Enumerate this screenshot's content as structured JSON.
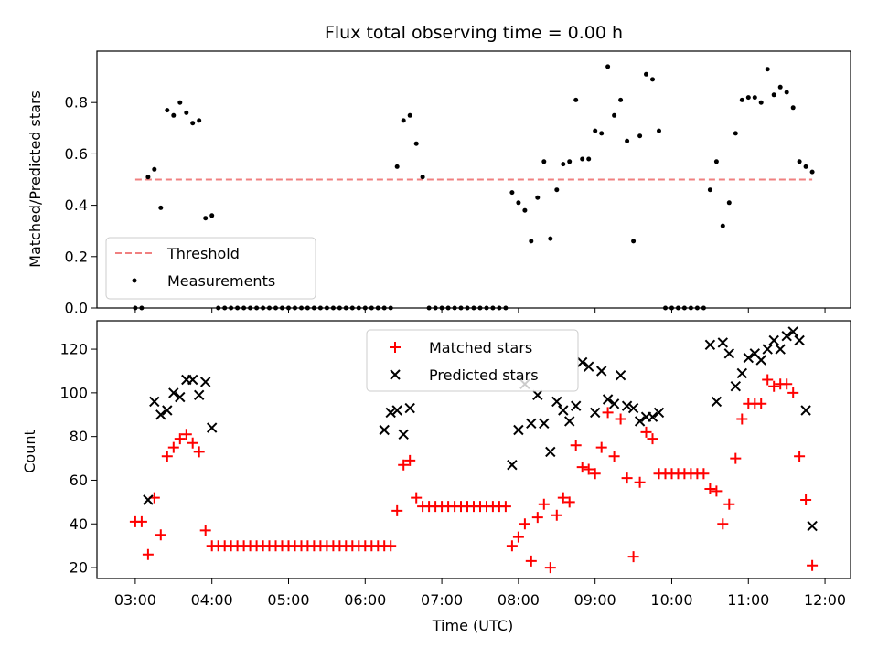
{
  "chart_data": [
    {
      "type": "scatter",
      "title": "Flux total observing time = 0.00 h",
      "ylabel": "Matched/Predicted stars",
      "xlabel": "",
      "xlim": [
        "02:30",
        "12:20"
      ],
      "ylim": [
        0,
        1.0
      ],
      "yticks": [
        0.0,
        0.2,
        0.4,
        0.6,
        0.8
      ],
      "ytick_labels": [
        "0.0",
        "0.2",
        "0.4",
        "0.6",
        "0.8"
      ],
      "x_tick_labels_shown": false,
      "legend": {
        "position": "lower left",
        "entries": [
          "Threshold",
          "Measurements"
        ]
      },
      "grid": false,
      "threshold": {
        "name": "Threshold",
        "value": 0.5,
        "x_range": [
          "03:00",
          "11:50"
        ],
        "color": "#f08080",
        "style": "dashed"
      },
      "series": [
        {
          "name": "Measurements",
          "color": "#000000",
          "x": [
            "03:00",
            "03:05",
            "03:10",
            "03:15",
            "03:20",
            "03:25",
            "03:30",
            "03:35",
            "03:40",
            "03:45",
            "03:50",
            "03:55",
            "04:00",
            "04:05",
            "04:10",
            "04:15",
            "04:20",
            "04:25",
            "04:30",
            "04:35",
            "04:40",
            "04:45",
            "04:50",
            "04:55",
            "05:00",
            "05:05",
            "05:10",
            "05:15",
            "05:20",
            "05:25",
            "05:30",
            "05:35",
            "05:40",
            "05:45",
            "05:50",
            "05:55",
            "06:00",
            "06:05",
            "06:10",
            "06:15",
            "06:20",
            "06:25",
            "06:30",
            "06:35",
            "06:40",
            "06:45",
            "06:50",
            "06:55",
            "07:00",
            "07:05",
            "07:10",
            "07:15",
            "07:20",
            "07:25",
            "07:30",
            "07:35",
            "07:40",
            "07:45",
            "07:50",
            "07:55",
            "08:00",
            "08:05",
            "08:10",
            "08:15",
            "08:20",
            "08:25",
            "08:30",
            "08:35",
            "08:40",
            "08:45",
            "08:50",
            "08:55",
            "09:00",
            "09:05",
            "09:10",
            "09:15",
            "09:20",
            "09:25",
            "09:30",
            "09:35",
            "09:40",
            "09:45",
            "09:50",
            "09:55",
            "10:00",
            "10:05",
            "10:10",
            "10:15",
            "10:20",
            "10:25",
            "10:30",
            "10:35",
            "10:40",
            "10:45",
            "10:50",
            "10:55",
            "11:00",
            "11:05",
            "11:10",
            "11:15",
            "11:20",
            "11:25",
            "11:30",
            "11:35",
            "11:40",
            "11:45",
            "11:50"
          ],
          "y": [
            0.0,
            0.0,
            0.51,
            0.54,
            0.39,
            0.77,
            0.75,
            0.8,
            0.76,
            0.72,
            0.73,
            0.35,
            0.36,
            0.0,
            0.0,
            0.0,
            0.0,
            0.0,
            0.0,
            0.0,
            0.0,
            0.0,
            0.0,
            0.0,
            0.0,
            0.0,
            0.0,
            0.0,
            0.0,
            0.0,
            0.0,
            0.0,
            0.0,
            0.0,
            0.0,
            0.0,
            0.0,
            0.0,
            0.0,
            0.0,
            0.0,
            0.55,
            0.73,
            0.75,
            0.64,
            0.51,
            0.0,
            0.0,
            0.0,
            0.0,
            0.0,
            0.0,
            0.0,
            0.0,
            0.0,
            0.0,
            0.0,
            0.0,
            0.0,
            0.45,
            0.41,
            0.38,
            0.26,
            0.43,
            0.57,
            0.27,
            0.46,
            0.56,
            0.57,
            0.81,
            0.58,
            0.58,
            0.69,
            0.68,
            0.94,
            0.75,
            0.81,
            0.65,
            0.26,
            0.67,
            0.91,
            0.89,
            0.69,
            0.0,
            0.0,
            0.0,
            0.0,
            0.0,
            0.0,
            0.0,
            0.46,
            0.57,
            0.32,
            0.41,
            0.68,
            0.81,
            0.82,
            0.82,
            0.8,
            0.93,
            0.83,
            0.86,
            0.84,
            0.78,
            0.57,
            0.55,
            0.53
          ]
        }
      ]
    },
    {
      "type": "scatter",
      "title": "",
      "ylabel": "Count",
      "xlabel": "Time (UTC)",
      "xlim": [
        "02:30",
        "12:20"
      ],
      "xticks": [
        "03:00",
        "04:00",
        "05:00",
        "06:00",
        "07:00",
        "08:00",
        "09:00",
        "10:00",
        "11:00",
        "12:00"
      ],
      "ylim": [
        15,
        133
      ],
      "yticks": [
        20,
        40,
        60,
        80,
        100,
        120
      ],
      "ytick_labels": [
        "20",
        "40",
        "60",
        "80",
        "100",
        "120"
      ],
      "legend": {
        "position": "top-center",
        "entries": [
          "Matched stars",
          "Predicted stars"
        ]
      },
      "grid": false,
      "series": [
        {
          "name": "Matched stars",
          "marker": "+",
          "color": "#ff0000",
          "x": [
            "03:00",
            "03:05",
            "03:10",
            "03:15",
            "03:20",
            "03:25",
            "03:30",
            "03:35",
            "03:40",
            "03:45",
            "03:50",
            "03:55",
            "04:00",
            "04:05",
            "04:10",
            "04:15",
            "04:20",
            "04:25",
            "04:30",
            "04:35",
            "04:40",
            "04:45",
            "04:50",
            "04:55",
            "05:00",
            "05:05",
            "05:10",
            "05:15",
            "05:20",
            "05:25",
            "05:30",
            "05:35",
            "05:40",
            "05:45",
            "05:50",
            "05:55",
            "06:00",
            "06:05",
            "06:10",
            "06:15",
            "06:20",
            "06:25",
            "06:30",
            "06:35",
            "06:40",
            "06:45",
            "06:50",
            "06:55",
            "07:00",
            "07:05",
            "07:10",
            "07:15",
            "07:20",
            "07:25",
            "07:30",
            "07:35",
            "07:40",
            "07:45",
            "07:50",
            "07:55",
            "08:00",
            "08:05",
            "08:10",
            "08:15",
            "08:20",
            "08:25",
            "08:30",
            "08:35",
            "08:40",
            "08:45",
            "08:50",
            "08:55",
            "09:00",
            "09:05",
            "09:10",
            "09:15",
            "09:20",
            "09:25",
            "09:30",
            "09:35",
            "09:40",
            "09:45",
            "09:50",
            "09:55",
            "10:00",
            "10:05",
            "10:10",
            "10:15",
            "10:20",
            "10:25",
            "10:30",
            "10:35",
            "10:40",
            "10:45",
            "10:50",
            "10:55",
            "11:00",
            "11:05",
            "11:10",
            "11:15",
            "11:20",
            "11:25",
            "11:30",
            "11:35",
            "11:40",
            "11:45",
            "11:50"
          ],
          "y": [
            41,
            41,
            26,
            52,
            35,
            71,
            75,
            79,
            81,
            77,
            73,
            37,
            30,
            30,
            30,
            30,
            30,
            30,
            30,
            30,
            30,
            30,
            30,
            30,
            30,
            30,
            30,
            30,
            30,
            30,
            30,
            30,
            30,
            30,
            30,
            30,
            30,
            30,
            30,
            30,
            30,
            46,
            67,
            69,
            52,
            48,
            48,
            48,
            48,
            48,
            48,
            48,
            48,
            48,
            48,
            48,
            48,
            48,
            48,
            30,
            34,
            40,
            23,
            43,
            49,
            20,
            44,
            52,
            50,
            76,
            66,
            65,
            63,
            75,
            91,
            71,
            88,
            61,
            25,
            59,
            82,
            79,
            63,
            63,
            63,
            63,
            63,
            63,
            63,
            63,
            56,
            55,
            40,
            49,
            70,
            88,
            95,
            95,
            95,
            106,
            103,
            104,
            104,
            100,
            71,
            51,
            21
          ]
        },
        {
          "name": "Predicted stars",
          "marker": "x",
          "color": "#000000",
          "x": [
            "03:10",
            "03:15",
            "03:20",
            "03:25",
            "03:30",
            "03:35",
            "03:40",
            "03:45",
            "03:50",
            "03:55",
            "04:00",
            "06:15",
            "06:20",
            "06:25",
            "06:30",
            "06:35",
            "07:55",
            "08:00",
            "08:05",
            "08:10",
            "08:15",
            "08:20",
            "08:25",
            "08:30",
            "08:35",
            "08:40",
            "08:45",
            "08:50",
            "08:55",
            "09:00",
            "09:05",
            "09:10",
            "09:15",
            "09:20",
            "09:25",
            "09:30",
            "09:35",
            "09:40",
            "09:45",
            "09:50",
            "10:30",
            "10:35",
            "10:40",
            "10:45",
            "10:50",
            "10:55",
            "11:00",
            "11:05",
            "11:10",
            "11:15",
            "11:20",
            "11:25",
            "11:30",
            "11:35",
            "11:40",
            "11:45",
            "11:50"
          ],
          "y": [
            51,
            96,
            90,
            92,
            100,
            98,
            106,
            106,
            99,
            105,
            84,
            83,
            91,
            92,
            81,
            93,
            67,
            83,
            104,
            86,
            99,
            86,
            73,
            96,
            92,
            87,
            94,
            114,
            112,
            91,
            110,
            97,
            95,
            108,
            94,
            93,
            87,
            89,
            89,
            91,
            122,
            96,
            123,
            118,
            103,
            109,
            116,
            118,
            115,
            120,
            124,
            120,
            126,
            128,
            124,
            92,
            39
          ]
        }
      ]
    }
  ]
}
